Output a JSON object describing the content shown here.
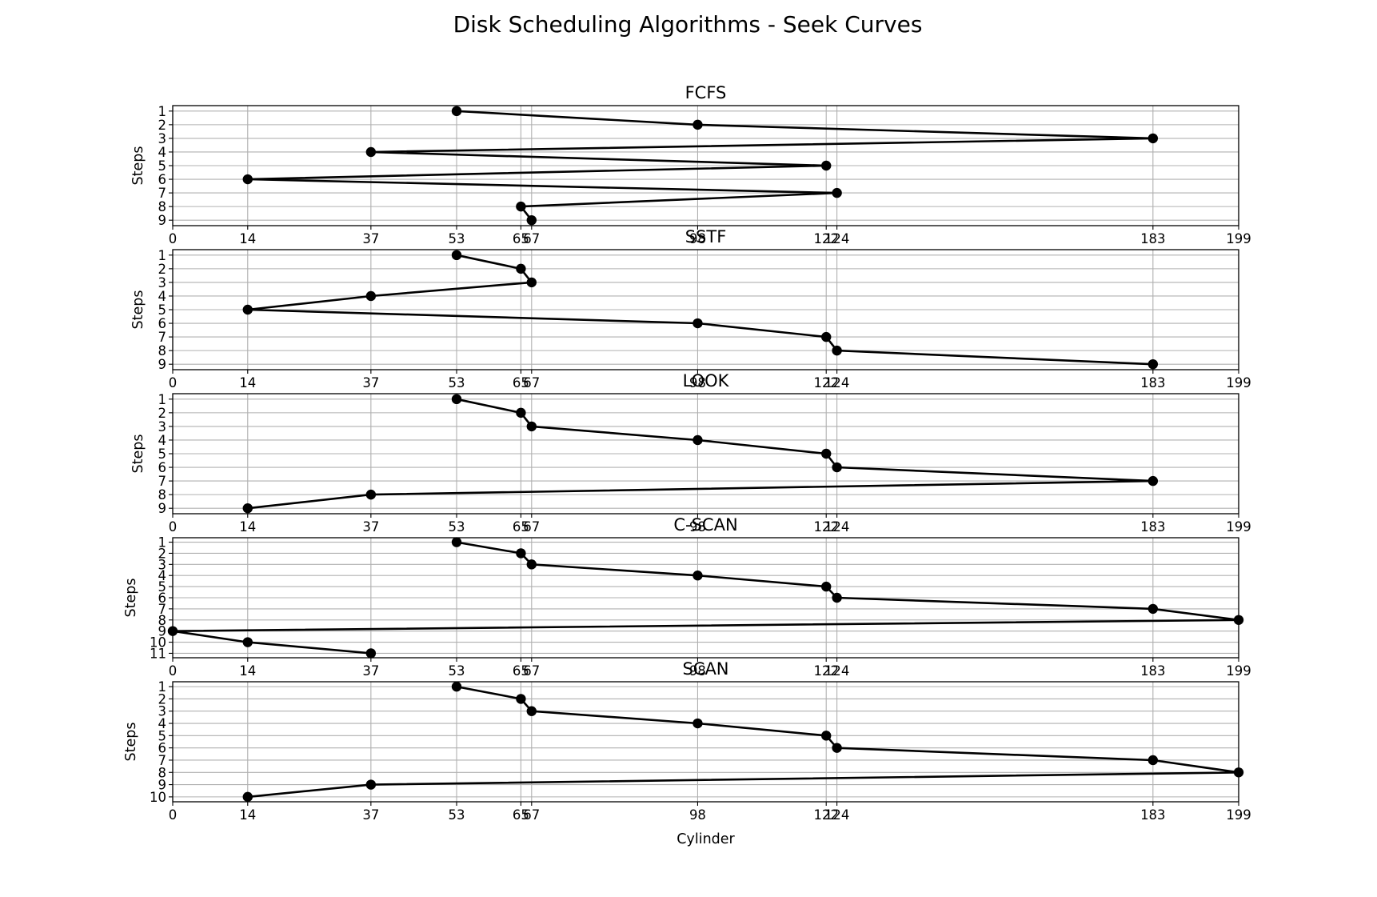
{
  "figure": {
    "title": "Disk Scheduling Algorithms - Seek Curves",
    "colors": {
      "line": "#000000",
      "marker": "#000000",
      "grid": "#b0b0b0",
      "background": "#ffffff"
    }
  },
  "chart_data": [
    {
      "type": "line",
      "title": "FCFS",
      "xlabel": "",
      "ylabel": "Steps",
      "xlim": [
        0,
        199
      ],
      "x_ticks": [
        0,
        14,
        37,
        53,
        65,
        67,
        98,
        122,
        124,
        183,
        199
      ],
      "y_ticks": [
        1,
        2,
        3,
        4,
        5,
        6,
        7,
        8,
        9
      ],
      "y_inverted": true,
      "grid": true,
      "x": [
        53,
        98,
        183,
        37,
        122,
        14,
        124,
        65,
        67
      ],
      "y": [
        1,
        2,
        3,
        4,
        5,
        6,
        7,
        8,
        9
      ]
    },
    {
      "type": "line",
      "title": "SSTF",
      "xlabel": "",
      "ylabel": "Steps",
      "xlim": [
        0,
        199
      ],
      "x_ticks": [
        0,
        14,
        37,
        53,
        65,
        67,
        98,
        122,
        124,
        183,
        199
      ],
      "y_ticks": [
        1,
        2,
        3,
        4,
        5,
        6,
        7,
        8,
        9
      ],
      "y_inverted": true,
      "grid": true,
      "x": [
        53,
        65,
        67,
        37,
        14,
        98,
        122,
        124,
        183
      ],
      "y": [
        1,
        2,
        3,
        4,
        5,
        6,
        7,
        8,
        9
      ]
    },
    {
      "type": "line",
      "title": "LOOK",
      "xlabel": "",
      "ylabel": "Steps",
      "xlim": [
        0,
        199
      ],
      "x_ticks": [
        0,
        14,
        37,
        53,
        65,
        67,
        98,
        122,
        124,
        183,
        199
      ],
      "y_ticks": [
        1,
        2,
        3,
        4,
        5,
        6,
        7,
        8,
        9
      ],
      "y_inverted": true,
      "grid": true,
      "x": [
        53,
        65,
        67,
        98,
        122,
        124,
        183,
        37,
        14
      ],
      "y": [
        1,
        2,
        3,
        4,
        5,
        6,
        7,
        8,
        9
      ]
    },
    {
      "type": "line",
      "title": "C-SCAN",
      "xlabel": "",
      "ylabel": "Steps",
      "xlim": [
        0,
        199
      ],
      "x_ticks": [
        0,
        14,
        37,
        53,
        65,
        67,
        98,
        122,
        124,
        183,
        199
      ],
      "y_ticks": [
        1,
        2,
        3,
        4,
        5,
        6,
        7,
        8,
        9,
        10,
        11
      ],
      "y_inverted": true,
      "grid": true,
      "x": [
        53,
        65,
        67,
        98,
        122,
        124,
        183,
        199,
        0,
        14,
        37
      ],
      "y": [
        1,
        2,
        3,
        4,
        5,
        6,
        7,
        8,
        9,
        10,
        11
      ]
    },
    {
      "type": "line",
      "title": "SCAN",
      "xlabel": "Cylinder",
      "ylabel": "Steps",
      "xlim": [
        0,
        199
      ],
      "x_ticks": [
        0,
        14,
        37,
        53,
        65,
        67,
        98,
        122,
        124,
        183,
        199
      ],
      "y_ticks": [
        1,
        2,
        3,
        4,
        5,
        6,
        7,
        8,
        9,
        10
      ],
      "y_inverted": true,
      "grid": true,
      "x": [
        53,
        65,
        67,
        98,
        122,
        124,
        183,
        199,
        37,
        14
      ],
      "y": [
        1,
        2,
        3,
        4,
        5,
        6,
        7,
        8,
        9,
        10
      ]
    }
  ]
}
